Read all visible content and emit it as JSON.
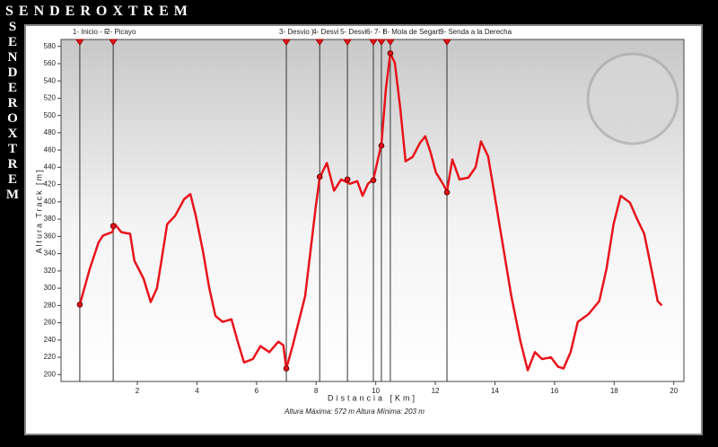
{
  "brand": "SENDEROXTREM",
  "chart_data": {
    "type": "line",
    "x_label": "Distancia [Km]",
    "y_label": "Altura Track [m]",
    "caption": "Altura Máxima: 572 m  Altura Mínima: 203 m",
    "color": "#e8141c",
    "xlim": [
      -0.56,
      20.34
    ],
    "ylim": [
      192,
      588
    ],
    "xticks": [
      2,
      4,
      6,
      8,
      10,
      12,
      14,
      16,
      18,
      20
    ],
    "yticks": [
      200,
      220,
      240,
      260,
      280,
      300,
      320,
      340,
      360,
      380,
      400,
      420,
      440,
      460,
      480,
      500,
      520,
      540,
      560,
      580
    ],
    "x": [
      0.07,
      0.4,
      0.7,
      0.85,
      1.16,
      1.25,
      1.46,
      1.76,
      1.9,
      2.21,
      2.45,
      2.66,
      2.81,
      3.0,
      3.27,
      3.57,
      3.78,
      3.96,
      4.2,
      4.41,
      4.62,
      4.86,
      5.16,
      5.37,
      5.58,
      5.88,
      6.13,
      6.43,
      6.73,
      6.9,
      7.0,
      7.21,
      7.63,
      7.99,
      8.12,
      8.36,
      8.6,
      8.84,
      9.14,
      9.38,
      9.56,
      9.74,
      9.92,
      10.19,
      10.34,
      10.49,
      10.64,
      10.82,
      11.0,
      11.24,
      11.48,
      11.66,
      11.84,
      12.02,
      12.27,
      12.39,
      12.57,
      12.81,
      13.11,
      13.35,
      13.53,
      13.77,
      13.95,
      14.25,
      14.55,
      14.86,
      15.1,
      15.34,
      15.58,
      15.88,
      16.12,
      16.3,
      16.54,
      16.78,
      17.14,
      17.5,
      17.74,
      17.98,
      18.22,
      18.53,
      18.77,
      19.01,
      19.25,
      19.46,
      19.6
    ],
    "values": [
      281,
      322,
      353,
      361,
      365,
      374,
      365,
      363,
      332,
      311,
      284,
      300,
      332,
      374,
      384,
      403,
      409,
      384,
      343,
      301,
      268,
      261,
      264,
      238,
      214,
      218,
      233,
      226,
      238,
      234,
      207,
      233,
      291,
      395,
      428,
      445,
      413,
      426,
      421,
      424,
      407,
      421,
      426,
      467,
      530,
      572,
      561,
      509,
      447,
      452,
      468,
      476,
      457,
      434,
      420,
      412,
      449,
      426,
      428,
      440,
      470,
      453,
      416,
      353,
      291,
      238,
      205,
      226,
      218,
      220,
      209,
      207,
      226,
      261,
      270,
      285,
      322,
      374,
      407,
      399,
      380,
      363,
      322,
      285,
      280
    ],
    "waypoints": [
      {
        "label": "1- Inicio - F",
        "x": 0.07,
        "value": 281
      },
      {
        "label": "2- Picayo",
        "x": 1.19,
        "value": 372
      },
      {
        "label": "3- Desvio )",
        "x": 7.0,
        "value": 207
      },
      {
        "label": "4- Desvi",
        "x": 8.12,
        "value": 429
      },
      {
        "label": "5- Desvi",
        "x": 9.05,
        "value": 426
      },
      {
        "label": "6-",
        "x": 9.92,
        "value": 425
      },
      {
        "label": "7- I",
        "x": 10.19,
        "value": 465
      },
      {
        "label": "8- Mola de Segart",
        "x": 10.49,
        "value": 572
      },
      {
        "label": "9- Senda a la Derecha",
        "x": 12.39,
        "value": 411
      }
    ]
  }
}
